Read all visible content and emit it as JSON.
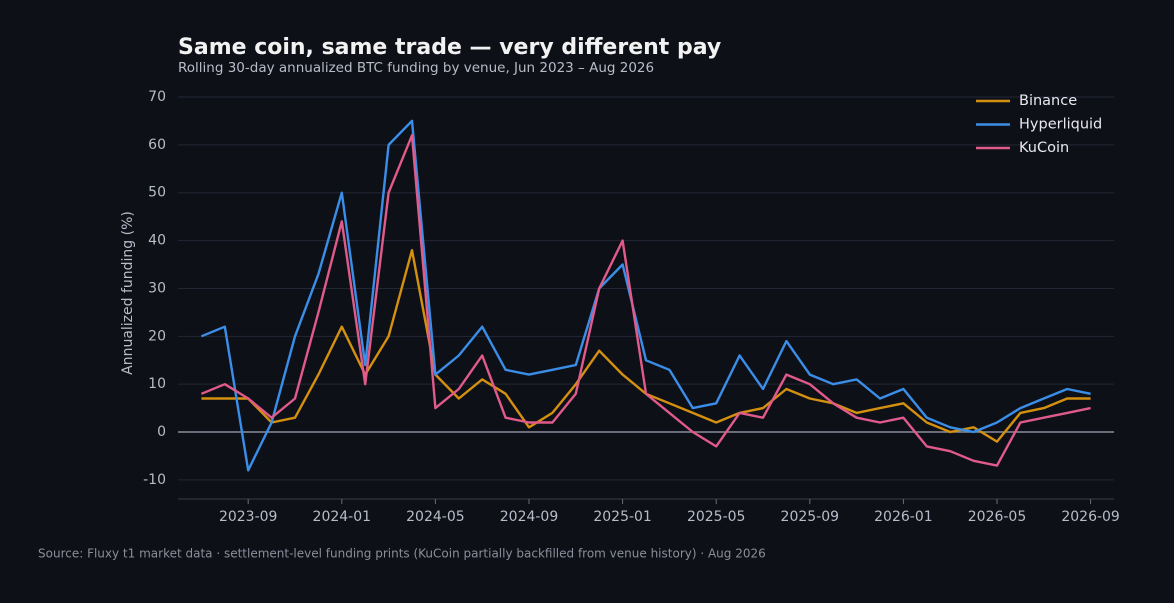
{
  "chart_data": {
    "type": "line",
    "title": "Same coin, same trade — very different pay",
    "subtitle": "Rolling 30-day annualized BTC funding by venue, Jun 2023 – Aug 2026",
    "y_label": "Annualized funding (%)",
    "source": "Source: Fluxy t1 market data · settlement-level funding prints (KuCoin partially backfilled from venue history) · Aug 2026",
    "x": [
      "2023-07",
      "2023-08",
      "2023-09",
      "2023-10",
      "2023-11",
      "2023-12",
      "2024-01",
      "2024-02",
      "2024-03",
      "2024-04",
      "2024-05",
      "2024-06",
      "2024-07",
      "2024-08",
      "2024-09",
      "2024-10",
      "2024-11",
      "2024-12",
      "2025-01",
      "2025-02",
      "2025-03",
      "2025-04",
      "2025-05",
      "2025-06",
      "2025-07",
      "2025-08",
      "2025-09",
      "2025-10",
      "2025-11",
      "2025-12",
      "2026-01",
      "2026-02",
      "2026-03",
      "2026-04",
      "2026-05",
      "2026-06",
      "2026-07",
      "2026-08",
      "2026-09"
    ],
    "series": [
      {
        "name": "Binance",
        "color": "#d4900f",
        "values": [
          7,
          7,
          7,
          2,
          3,
          12,
          22,
          12,
          20,
          38,
          12,
          7,
          11,
          8,
          1,
          4,
          10,
          17,
          12,
          8,
          6,
          4,
          2,
          4,
          5,
          9,
          7,
          6,
          4,
          5,
          6,
          2,
          0,
          1,
          -2,
          4,
          5,
          7,
          7
        ]
      },
      {
        "name": "Hyperliquid",
        "color": "#3b8ee8",
        "values": [
          20,
          22,
          -8,
          2,
          20,
          33,
          50,
          14,
          60,
          65,
          12,
          16,
          22,
          13,
          12,
          13,
          14,
          30,
          35,
          15,
          13,
          5,
          6,
          16,
          9,
          19,
          12,
          10,
          11,
          7,
          9,
          3,
          1,
          0,
          2,
          5,
          7,
          9,
          8
        ]
      },
      {
        "name": "KuCoin",
        "color": "#e05a8a",
        "values": [
          8,
          10,
          7,
          3,
          7,
          25,
          44,
          10,
          50,
          62,
          5,
          9,
          16,
          3,
          2,
          2,
          8,
          30,
          40,
          8,
          4,
          0,
          -3,
          4,
          3,
          12,
          10,
          6,
          3,
          2,
          3,
          -3,
          -4,
          -6,
          -7,
          2,
          3,
          4,
          5
        ]
      }
    ],
    "xlim": [
      "2023-06",
      "2026-10"
    ],
    "xticks": [
      "2023-09",
      "2024-01",
      "2024-05",
      "2024-09",
      "2025-01",
      "2025-05",
      "2025-09",
      "2026-01",
      "2026-05",
      "2026-09"
    ],
    "ylim": [
      -14,
      72
    ],
    "yticks": [
      -10,
      0,
      10,
      20,
      30,
      40,
      50,
      60,
      70
    ],
    "grid": true,
    "legend": "top-right"
  }
}
